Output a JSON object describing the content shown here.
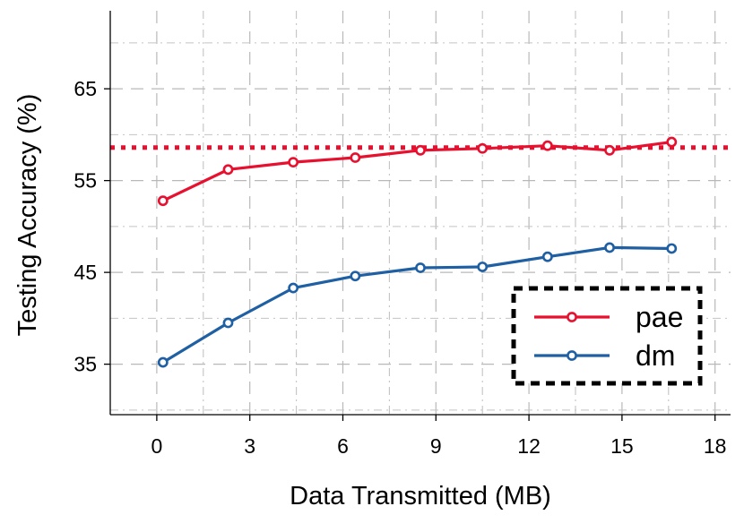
{
  "chart_data": {
    "type": "line",
    "xlabel": "Data Transmitted (MB)",
    "ylabel": "Testing Accuracy (%)",
    "xlim": [
      -1.5,
      18.5
    ],
    "ylim": [
      29.5,
      73.5
    ],
    "xticks": [
      0,
      3,
      6,
      9,
      12,
      15,
      18
    ],
    "xtick_labels": [
      "0",
      "3",
      "6",
      "9",
      "12",
      "15",
      "18"
    ],
    "yticks": [
      35,
      45,
      55,
      65
    ],
    "ytick_labels": [
      "35",
      "45",
      "55",
      "65"
    ],
    "grid": true,
    "reference_line": {
      "y": 58.6,
      "style": "dotted",
      "color": "#e8102f"
    },
    "series": [
      {
        "name": "pae",
        "color": "#e8102f",
        "marker": "circle",
        "x": [
          0.2,
          2.3,
          4.4,
          6.4,
          8.5,
          10.5,
          12.6,
          14.6,
          16.6
        ],
        "y": [
          52.8,
          56.2,
          57.0,
          57.5,
          58.3,
          58.5,
          58.8,
          58.3,
          59.2
        ]
      },
      {
        "name": "dm",
        "color": "#1f5fa3",
        "marker": "circle",
        "x": [
          0.2,
          2.3,
          4.4,
          6.4,
          8.5,
          10.5,
          12.6,
          14.6,
          16.6
        ],
        "y": [
          35.2,
          39.5,
          43.3,
          44.6,
          45.5,
          45.6,
          46.7,
          47.7,
          47.6
        ]
      }
    ],
    "legend": {
      "placement": "bottom-right",
      "border": "dashed"
    }
  }
}
